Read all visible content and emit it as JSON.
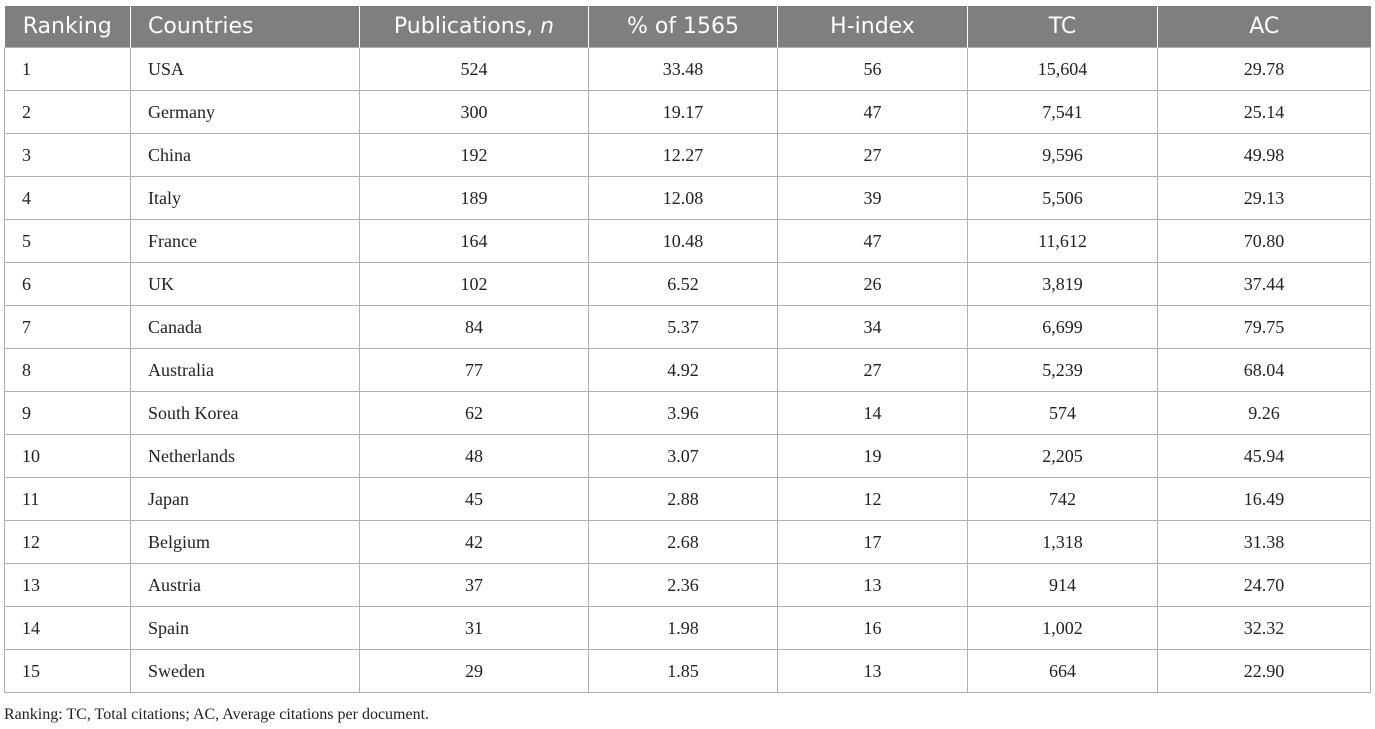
{
  "table": {
    "headers": {
      "ranking": "Ranking",
      "countries": "Countries",
      "publications": "Publications,",
      "publications_n": "n",
      "percent": "% of 1565",
      "hindex": "H-index",
      "tc": "TC",
      "ac": "AC"
    },
    "rows": [
      [
        "1",
        "USA",
        "524",
        "33.48",
        "56",
        "15,604",
        "29.78"
      ],
      [
        "2",
        "Germany",
        "300",
        "19.17",
        "47",
        "7,541",
        "25.14"
      ],
      [
        "3",
        "China",
        "192",
        "12.27",
        "27",
        "9,596",
        "49.98"
      ],
      [
        "4",
        "Italy",
        "189",
        "12.08",
        "39",
        "5,506",
        "29.13"
      ],
      [
        "5",
        "France",
        "164",
        "10.48",
        "47",
        "11,612",
        "70.80"
      ],
      [
        "6",
        "UK",
        "102",
        "6.52",
        "26",
        "3,819",
        "37.44"
      ],
      [
        "7",
        "Canada",
        "84",
        "5.37",
        "34",
        "6,699",
        "79.75"
      ],
      [
        "8",
        "Australia",
        "77",
        "4.92",
        "27",
        "5,239",
        "68.04"
      ],
      [
        "9",
        "South Korea",
        "62",
        "3.96",
        "14",
        "574",
        "9.26"
      ],
      [
        "10",
        "Netherlands",
        "48",
        "3.07",
        "19",
        "2,205",
        "45.94"
      ],
      [
        "11",
        "Japan",
        "45",
        "2.88",
        "12",
        "742",
        "16.49"
      ],
      [
        "12",
        "Belgium",
        "42",
        "2.68",
        "17",
        "1,318",
        "31.38"
      ],
      [
        "13",
        "Austria",
        "37",
        "2.36",
        "13",
        "914",
        "24.70"
      ],
      [
        "14",
        "Spain",
        "31",
        "1.98",
        "16",
        "1,002",
        "32.32"
      ],
      [
        "15",
        "Sweden",
        "29",
        "1.85",
        "13",
        "664",
        "22.90"
      ]
    ]
  },
  "footnote": "Ranking: TC, Total citations; AC, Average citations per document.",
  "colors": {
    "header_bg": "#7f7f7f",
    "header_text": "#ffffff",
    "grid": "#b0b0b0"
  }
}
